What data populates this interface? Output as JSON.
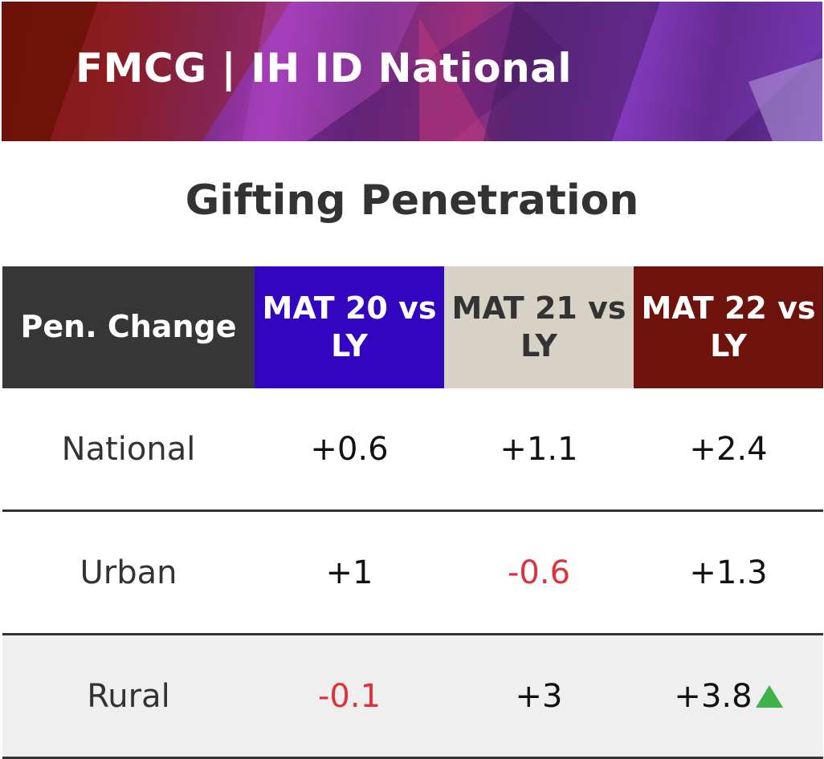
{
  "header": {
    "title": "FMCG | IH ID National"
  },
  "subtitle": "Gifting Penetration",
  "colors": {
    "col_label_bg": "#363636",
    "mat20_bg": "#3405c0",
    "mat21_bg": "#d8d1c5",
    "mat22_bg": "#6e130c",
    "negative": "#e0303a",
    "up_arrow": "#3eb34a"
  },
  "chart_data": {
    "type": "table",
    "title": "Gifting Penetration",
    "columns": [
      "Pen. Change",
      "MAT 20 vs LY",
      "MAT 21 vs LY",
      "MAT 22 vs LY"
    ],
    "rows": [
      {
        "label": "National",
        "values": [
          "+0.6",
          "+1.1",
          "+2.4"
        ],
        "negative": [
          false,
          false,
          false
        ],
        "arrow": [
          false,
          false,
          false
        ]
      },
      {
        "label": "Urban",
        "values": [
          "+1",
          "-0.6",
          "+1.3"
        ],
        "negative": [
          false,
          true,
          false
        ],
        "arrow": [
          false,
          false,
          false
        ]
      },
      {
        "label": "Rural",
        "values": [
          "-0.1",
          "+3",
          "+3.8"
        ],
        "negative": [
          true,
          false,
          false
        ],
        "arrow": [
          false,
          false,
          true
        ]
      }
    ]
  }
}
